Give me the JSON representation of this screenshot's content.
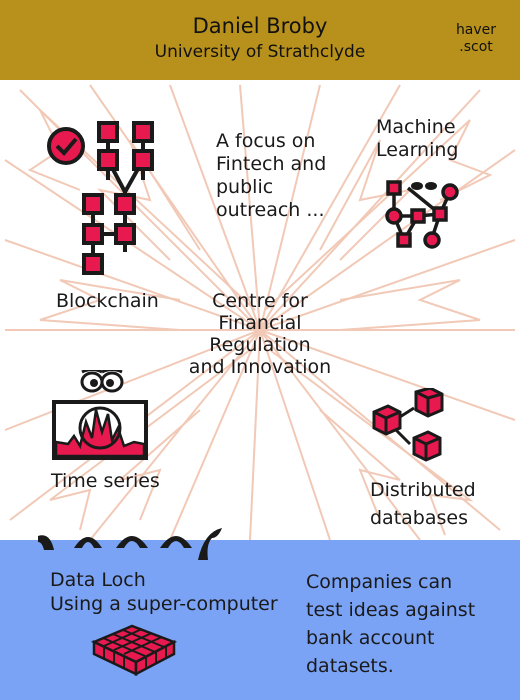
{
  "header": {
    "name": "Daniel Broby",
    "university": "University of Strathclyde",
    "site_line1": "haver",
    "site_line2": ".scot"
  },
  "center_title": [
    "Centre for",
    "Financial",
    "Regulation",
    "and Innovation"
  ],
  "focus_text": [
    "A focus on",
    "Fintech and",
    "public",
    "outreach ..."
  ],
  "labels": {
    "blockchain": "Blockchain",
    "machine_learning": [
      "Machine",
      "Learning"
    ],
    "time_series": "Time series",
    "distributed_databases": [
      "Distributed",
      "databases"
    ]
  },
  "data_loch": {
    "title": "Data Loch",
    "subtitle": "Using a super-computer"
  },
  "companies_text": [
    "Companies can",
    "test ideas against",
    "bank account",
    "datasets."
  ],
  "colors": {
    "header_bg": "#b8911c",
    "accent": "#e8194f",
    "water": "#7aa3f6",
    "burst_lines": "#f1c9b6"
  },
  "icons": [
    "check-circle-icon",
    "blockchain-icon",
    "neural-network-icon",
    "time-series-monitor-icon",
    "distributed-cubes-icon",
    "supercomputer-grid-icon",
    "loch-monster-icon"
  ]
}
